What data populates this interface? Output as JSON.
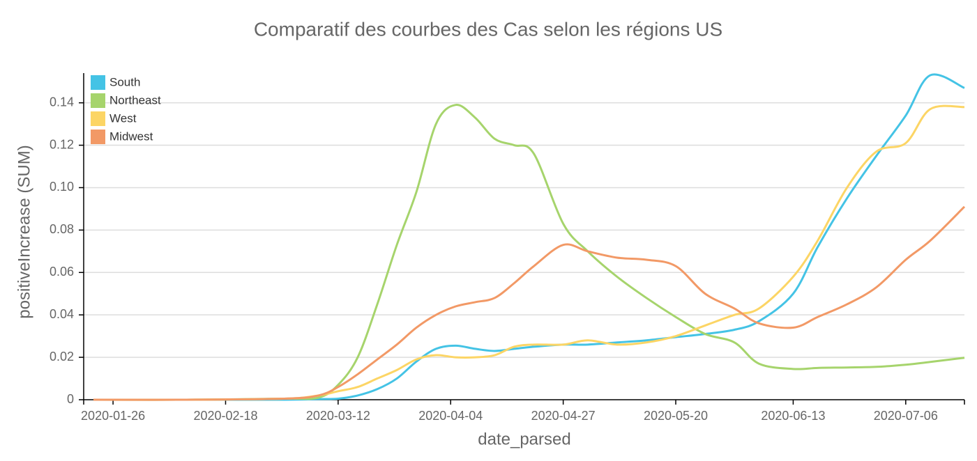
{
  "chart_data": {
    "type": "line",
    "title": "Comparatif des courbes des Cas selon les régions US",
    "x_label": "date_parsed",
    "y_label": "positiveIncrease (SUM)",
    "x": [
      "2020-01-22",
      "2020-02-10",
      "2020-03-01",
      "2020-03-08",
      "2020-03-12",
      "2020-03-16",
      "2020-03-20",
      "2020-03-24",
      "2020-03-28",
      "2020-04-01",
      "2020-04-05",
      "2020-04-09",
      "2020-04-13",
      "2020-04-17",
      "2020-04-21",
      "2020-04-27",
      "2020-05-02",
      "2020-05-08",
      "2020-05-14",
      "2020-05-20",
      "2020-05-26",
      "2020-06-01",
      "2020-06-06",
      "2020-06-13",
      "2020-06-18",
      "2020-06-24",
      "2020-06-30",
      "2020-07-06",
      "2020-07-11",
      "2020-07-18"
    ],
    "series": [
      {
        "name": "South",
        "color": "#44c3e5",
        "values": [
          0,
          0,
          0,
          0.0003,
          0.0005,
          0.002,
          0.005,
          0.01,
          0.018,
          0.024,
          0.0255,
          0.024,
          0.023,
          0.024,
          0.025,
          0.026,
          0.026,
          0.027,
          0.028,
          0.0295,
          0.031,
          0.033,
          0.037,
          0.05,
          0.072,
          0.095,
          0.115,
          0.134,
          0.153,
          0.147
        ]
      },
      {
        "name": "Northeast",
        "color": "#a6d46c",
        "values": [
          0,
          0,
          0.0005,
          0.001,
          0.007,
          0.02,
          0.045,
          0.073,
          0.098,
          0.13,
          0.139,
          0.133,
          0.123,
          0.12,
          0.116,
          0.083,
          0.07,
          0.058,
          0.048,
          0.039,
          0.031,
          0.027,
          0.017,
          0.0145,
          0.015,
          0.0152,
          0.0155,
          0.0165,
          0.0178,
          0.0198
        ]
      },
      {
        "name": "West",
        "color": "#fcd565",
        "values": [
          0,
          0,
          0.0005,
          0.002,
          0.004,
          0.006,
          0.01,
          0.014,
          0.019,
          0.021,
          0.02,
          0.02,
          0.021,
          0.025,
          0.026,
          0.026,
          0.028,
          0.026,
          0.027,
          0.03,
          0.035,
          0.04,
          0.043,
          0.058,
          0.075,
          0.1,
          0.117,
          0.121,
          0.137,
          0.138
        ]
      },
      {
        "name": "Midwest",
        "color": "#f29966",
        "values": [
          0,
          0,
          0.0005,
          0.002,
          0.006,
          0.012,
          0.019,
          0.026,
          0.034,
          0.04,
          0.044,
          0.046,
          0.048,
          0.055,
          0.063,
          0.073,
          0.07,
          0.067,
          0.066,
          0.063,
          0.05,
          0.043,
          0.036,
          0.034,
          0.039,
          0.045,
          0.053,
          0.066,
          0.075,
          0.091
        ]
      }
    ],
    "xlim": [
      "2020-01-20",
      "2020-07-18"
    ],
    "xticks": [
      "2020-01-26",
      "2020-02-18",
      "2020-03-12",
      "2020-04-04",
      "2020-04-27",
      "2020-05-20",
      "2020-06-13",
      "2020-07-06"
    ],
    "ylim": [
      0,
      0.154
    ],
    "yticks": [
      0,
      0.02,
      0.04,
      0.06,
      0.08,
      {
        "value": 0.1,
        "label": "0.10"
      },
      0.12,
      0.14
    ],
    "grid": true,
    "legend": "top-left"
  }
}
